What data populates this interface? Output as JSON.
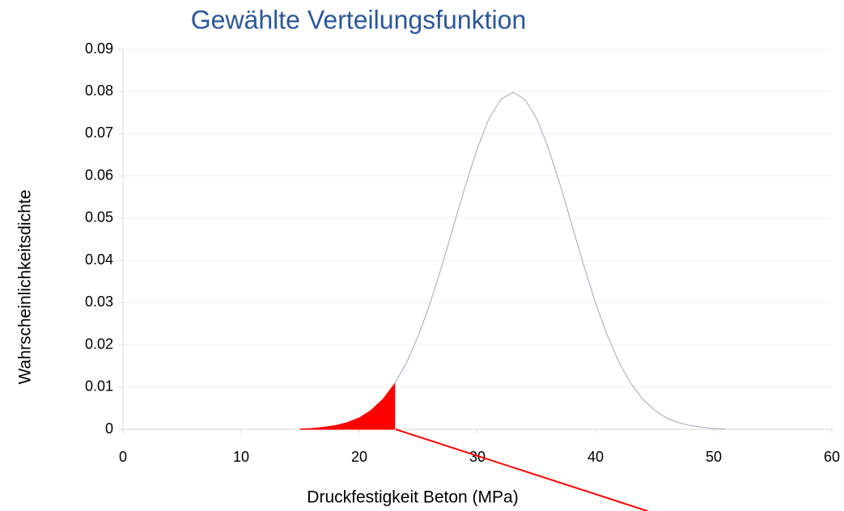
{
  "chart_data": {
    "type": "line",
    "title": "Gewählte Verteilungsfunktion",
    "x_label": "Druckfestigkeit Beton (MPa)",
    "y_label": "Wahrscheinlichkeitsdichte",
    "series": [
      {
        "color": "#a6a6b8",
        "x": [
          15,
          16,
          17,
          18,
          19,
          20,
          21,
          22,
          23,
          24,
          25,
          26,
          27,
          28,
          29,
          30,
          31,
          32,
          33,
          34,
          35,
          36,
          37,
          38,
          39,
          40,
          41,
          42,
          43,
          44,
          45,
          46,
          47,
          48,
          49,
          50,
          51
        ],
        "values": [
          0.0001,
          0.0002,
          0.0005,
          0.0009,
          0.0016,
          0.0027,
          0.0045,
          0.0071,
          0.0108,
          0.0158,
          0.0222,
          0.0299,
          0.0388,
          0.0484,
          0.0579,
          0.0666,
          0.0737,
          0.0782,
          0.0798,
          0.0782,
          0.0737,
          0.0666,
          0.0579,
          0.0484,
          0.0388,
          0.0299,
          0.0222,
          0.0158,
          0.0108,
          0.0071,
          0.0045,
          0.0027,
          0.0016,
          0.0009,
          0.0005,
          0.0002,
          0.0001
        ]
      },
      {
        "type": "area",
        "color": "#ff0000",
        "x": [
          15,
          16,
          17,
          18,
          19,
          20,
          21,
          22,
          23
        ],
        "values": [
          0.0001,
          0.0002,
          0.0005,
          0.0009,
          0.0016,
          0.0027,
          0.0045,
          0.0071,
          0.0108
        ]
      }
    ],
    "xlim": [
      0,
      60
    ],
    "xticks": [
      0,
      10,
      20,
      30,
      40,
      50,
      60
    ],
    "ylim": [
      0,
      0.09
    ],
    "yticks": [
      0,
      0.01,
      0.02,
      0.03,
      0.04,
      0.05,
      0.06,
      0.07,
      0.08,
      0.09
    ],
    "grid": true
  }
}
